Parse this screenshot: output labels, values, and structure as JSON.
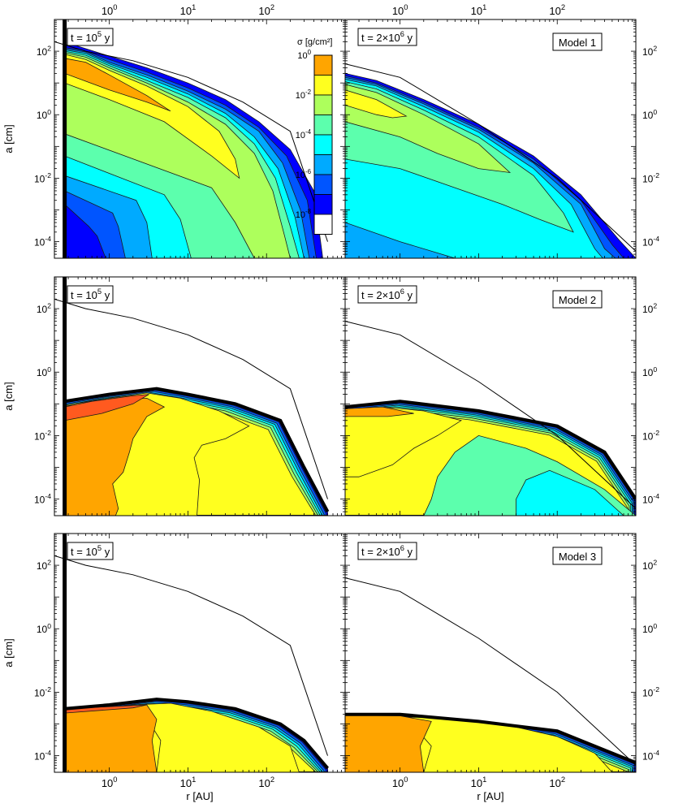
{
  "figure": {
    "xlabel": "r [AU]",
    "ylabel": "a [cm]",
    "x_ticks": [
      "10^0",
      "10^1",
      "10^2"
    ],
    "y_ticks": [
      "10^-4",
      "10^-2",
      "10^0",
      "10^2"
    ],
    "colorbar": {
      "label": "σ [g/cm²]",
      "ticks": [
        "10^0",
        "10^-2",
        "10^-4",
        "10^-6",
        "10^-8"
      ],
      "colors": [
        "#ff5a1f",
        "#ffa500",
        "#ffff1f",
        "#adff5c",
        "#5cffad",
        "#00ffff",
        "#00aaff",
        "#0055ff",
        "#0000ff",
        "#ffffff"
      ]
    }
  },
  "chart_data": [
    {
      "type": "contour",
      "model": "Model 1",
      "time_label": "t = 10^5 y",
      "xscale": "log",
      "yscale": "log",
      "xlim": [
        0.2,
        1000
      ],
      "ylim": [
        3e-05,
        1000
      ],
      "max_size_curve": {
        "x": [
          0.2,
          0.5,
          2,
          10,
          50,
          200,
          600
        ],
        "y": [
          200,
          100,
          50,
          15,
          2.5,
          0.3,
          0.0001
        ]
      },
      "inner_boundary_r": 0.27,
      "color_levels": [
        1,
        0.1,
        0.01,
        0.001,
        0.0001,
        1e-05,
        1e-06,
        1e-07,
        1e-08
      ]
    },
    {
      "type": "contour",
      "time_label": "t = 2×10^6 y",
      "xscale": "log",
      "yscale": "log",
      "xlim": [
        0.2,
        1000
      ],
      "ylim": [
        3e-05,
        1000
      ],
      "max_size_curve": {
        "x": [
          0.2,
          1,
          10,
          100,
          1000
        ],
        "y": [
          40,
          15,
          0.5,
          0.01,
          5e-05
        ]
      }
    },
    {
      "type": "contour",
      "model": "Model 2",
      "time_label": "t = 10^5 y",
      "xscale": "log",
      "yscale": "log",
      "xlim": [
        0.2,
        1000
      ],
      "ylim": [
        3e-05,
        1000
      ],
      "max_size_curve": {
        "x": [
          0.2,
          0.5,
          2,
          10,
          50,
          200,
          600
        ],
        "y": [
          200,
          100,
          50,
          15,
          2.5,
          0.3,
          0.0001
        ]
      },
      "inner_boundary_r": 0.27,
      "dust_front": {
        "x": [
          0.27,
          1,
          4,
          10,
          40,
          150,
          300,
          600
        ],
        "y": [
          0.12,
          0.2,
          0.3,
          0.2,
          0.1,
          0.03,
          0.001,
          4e-05
        ]
      }
    },
    {
      "type": "contour",
      "time_label": "t = 2×10^6 y",
      "xscale": "log",
      "yscale": "log",
      "xlim": [
        0.2,
        1000
      ],
      "ylim": [
        3e-05,
        1000
      ],
      "max_size_curve": {
        "x": [
          0.2,
          1,
          10,
          100,
          1000
        ],
        "y": [
          40,
          15,
          0.5,
          0.01,
          5e-05
        ]
      },
      "dust_front": {
        "x": [
          0.2,
          1,
          10,
          100,
          400,
          1000
        ],
        "y": [
          0.08,
          0.12,
          0.06,
          0.02,
          0.003,
          0.0001
        ]
      }
    },
    {
      "type": "contour",
      "model": "Model 3",
      "time_label": "t = 10^5 y",
      "xscale": "log",
      "yscale": "log",
      "xlim": [
        0.2,
        1000
      ],
      "ylim": [
        3e-05,
        1000
      ],
      "max_size_curve": {
        "x": [
          0.2,
          0.5,
          2,
          10,
          50,
          200,
          600
        ],
        "y": [
          200,
          100,
          50,
          15,
          2.5,
          0.3,
          0.0001
        ]
      },
      "inner_boundary_r": 0.27,
      "dust_front": {
        "x": [
          0.27,
          1,
          4,
          10,
          40,
          150,
          300,
          600
        ],
        "y": [
          0.003,
          0.004,
          0.006,
          0.005,
          0.003,
          0.001,
          0.0003,
          4e-05
        ]
      }
    },
    {
      "type": "contour",
      "time_label": "t = 2×10^6 y",
      "xscale": "log",
      "yscale": "log",
      "xlim": [
        0.2,
        1000
      ],
      "ylim": [
        3e-05,
        1000
      ],
      "max_size_curve": {
        "x": [
          0.2,
          1,
          10,
          100,
          1000
        ],
        "y": [
          40,
          15,
          0.5,
          0.01,
          5e-05
        ]
      },
      "dust_front": {
        "x": [
          0.2,
          1,
          10,
          100,
          400,
          1000
        ],
        "y": [
          0.002,
          0.002,
          0.0012,
          0.0006,
          0.00015,
          6e-05
        ]
      }
    }
  ]
}
